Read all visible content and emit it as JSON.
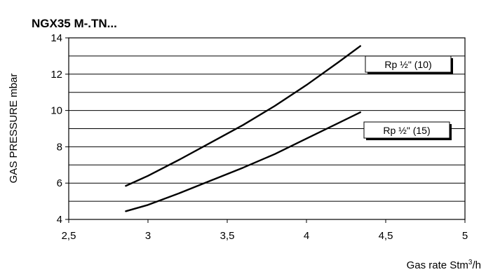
{
  "chart_data": {
    "type": "line",
    "title": "NGX35 M-.TN...",
    "xlabel": "Gas rate  Stm³/h",
    "ylabel": "GAS PRESSURE mbar",
    "xlim": [
      2.5,
      5
    ],
    "ylim": [
      4,
      14
    ],
    "xticks": [
      "2,5",
      "3",
      "3,5",
      "4",
      "4,5",
      "5"
    ],
    "yticks": [
      "4",
      "6",
      "8",
      "10",
      "12",
      "14"
    ],
    "grid": "horizontal",
    "series": [
      {
        "name": "Rp ½\" (10)",
        "x": [
          2.86,
          3.0,
          3.2,
          3.4,
          3.6,
          3.8,
          4.0,
          4.2,
          4.34
        ],
        "y": [
          5.85,
          6.4,
          7.3,
          8.25,
          9.2,
          10.25,
          11.4,
          12.65,
          13.55
        ]
      },
      {
        "name": "Rp ½\" (15)",
        "x": [
          2.86,
          3.0,
          3.2,
          3.4,
          3.6,
          3.8,
          4.0,
          4.2,
          4.34
        ],
        "y": [
          4.45,
          4.8,
          5.45,
          6.15,
          6.85,
          7.6,
          8.45,
          9.3,
          9.9
        ]
      }
    ]
  }
}
